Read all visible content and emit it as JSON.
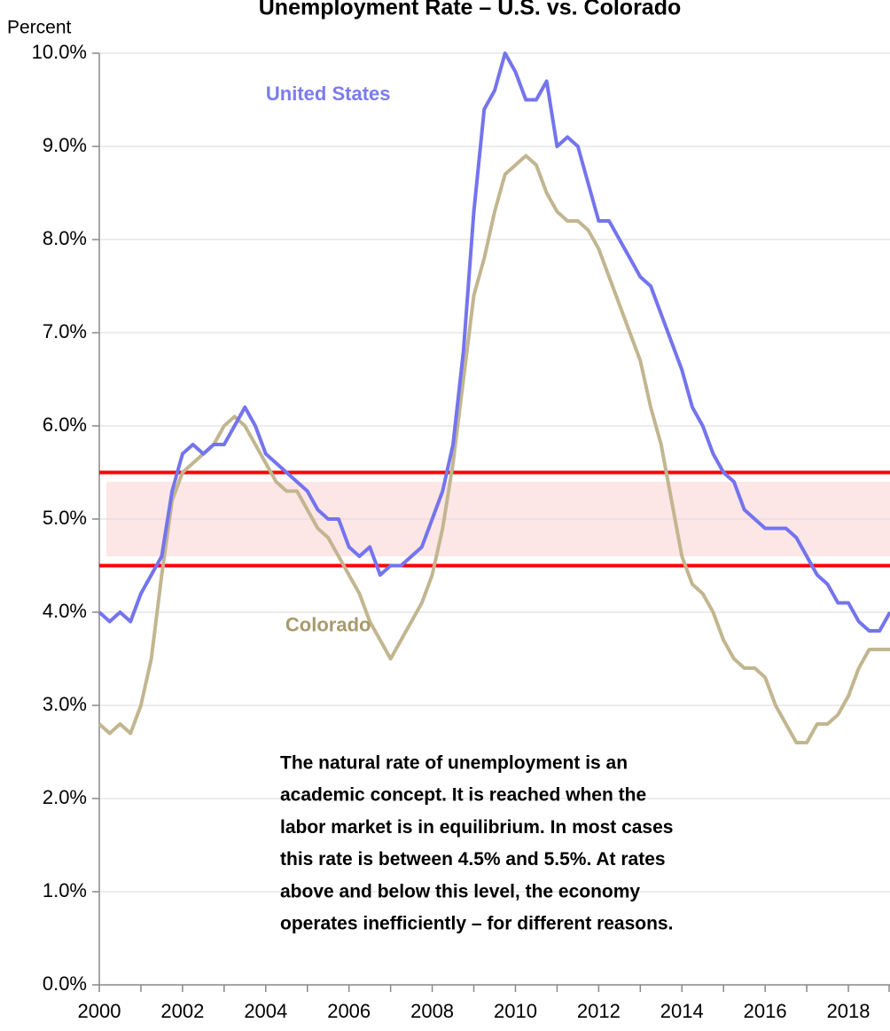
{
  "chart_data": {
    "type": "line",
    "title": "Unemployment Rate – U.S. vs. Colorado",
    "ylabel": "Percent",
    "x": [
      2000,
      2000.25,
      2000.5,
      2000.75,
      2001,
      2001.25,
      2001.5,
      2001.75,
      2002,
      2002.25,
      2002.5,
      2002.75,
      2003,
      2003.25,
      2003.5,
      2003.75,
      2004,
      2004.25,
      2004.5,
      2004.75,
      2005,
      2005.25,
      2005.5,
      2005.75,
      2006,
      2006.25,
      2006.5,
      2006.75,
      2007,
      2007.25,
      2007.5,
      2007.75,
      2008,
      2008.25,
      2008.5,
      2008.75,
      2009,
      2009.25,
      2009.5,
      2009.75,
      2010,
      2010.25,
      2010.5,
      2010.75,
      2011,
      2011.25,
      2011.5,
      2011.75,
      2012,
      2012.25,
      2012.5,
      2012.75,
      2013,
      2013.25,
      2013.5,
      2013.75,
      2014,
      2014.25,
      2014.5,
      2014.75,
      2015,
      2015.25,
      2015.5,
      2015.75,
      2016,
      2016.25,
      2016.5,
      2016.75,
      2017,
      2017.25,
      2017.5,
      2017.75,
      2018,
      2018.25,
      2018.5,
      2018.75,
      2019
    ],
    "series": [
      {
        "name": "United States",
        "color": "#7474ee",
        "values": [
          4.0,
          3.9,
          4.0,
          3.9,
          4.2,
          4.4,
          4.6,
          5.3,
          5.7,
          5.8,
          5.7,
          5.8,
          5.8,
          6.0,
          6.2,
          6.0,
          5.7,
          5.6,
          5.5,
          5.4,
          5.3,
          5.1,
          5.0,
          5.0,
          4.7,
          4.6,
          4.7,
          4.4,
          4.5,
          4.5,
          4.6,
          4.7,
          5.0,
          5.3,
          5.8,
          6.8,
          8.3,
          9.4,
          9.6,
          10.0,
          9.8,
          9.5,
          9.5,
          9.7,
          9.0,
          9.1,
          9.0,
          8.6,
          8.2,
          8.2,
          8.0,
          7.8,
          7.6,
          7.5,
          7.2,
          6.9,
          6.6,
          6.2,
          6.0,
          5.7,
          5.5,
          5.4,
          5.1,
          5.0,
          4.9,
          4.9,
          4.9,
          4.8,
          4.6,
          4.4,
          4.3,
          4.1,
          4.1,
          3.9,
          3.8,
          3.8,
          4.0
        ]
      },
      {
        "name": "Colorado",
        "color": "#c2b690",
        "values": [
          2.8,
          2.7,
          2.8,
          2.7,
          3.0,
          3.5,
          4.4,
          5.2,
          5.5,
          5.6,
          5.7,
          5.8,
          6.0,
          6.1,
          6.0,
          5.8,
          5.6,
          5.4,
          5.3,
          5.3,
          5.1,
          4.9,
          4.8,
          4.6,
          4.4,
          4.2,
          3.9,
          3.7,
          3.5,
          3.7,
          3.9,
          4.1,
          4.4,
          4.9,
          5.6,
          6.5,
          7.4,
          7.8,
          8.3,
          8.7,
          8.8,
          8.9,
          8.8,
          8.5,
          8.3,
          8.2,
          8.2,
          8.1,
          7.9,
          7.6,
          7.3,
          7.0,
          6.7,
          6.2,
          5.8,
          5.2,
          4.6,
          4.3,
          4.2,
          4.0,
          3.7,
          3.5,
          3.4,
          3.4,
          3.3,
          3.0,
          2.8,
          2.6,
          2.6,
          2.8,
          2.8,
          2.9,
          3.1,
          3.4,
          3.6,
          3.6,
          3.6
        ]
      }
    ],
    "series_labels": [
      {
        "text": "United States",
        "x": 2005.5,
        "y": 9.55,
        "color": "#7b7bef"
      },
      {
        "text": "Colorado",
        "x": 2005.5,
        "y": 3.85,
        "color": "#a89a6c"
      }
    ],
    "reference_lines": [
      {
        "value": 5.5,
        "color": "#ff0000"
      },
      {
        "value": 4.5,
        "color": "#ff0000"
      }
    ],
    "band": {
      "from": 4.6,
      "to": 5.4,
      "x_from": 2000.17,
      "color": "#fde6e6"
    },
    "annotation": [
      "The natural rate of unemployment is an",
      "academic concept. It is reached when the",
      "labor market is in equilibrium. In most cases",
      "this rate is between 4.5% and 5.5%. At rates",
      "above and below this level, the economy",
      "operates inefficiently – for different reasons."
    ],
    "xlim": [
      2000,
      2019
    ],
    "xticks": [
      2000,
      2002,
      2004,
      2006,
      2008,
      2010,
      2012,
      2014,
      2016,
      2018
    ],
    "xminorticks": [
      2001,
      2003,
      2005,
      2007,
      2009,
      2011,
      2013,
      2015,
      2017,
      2019
    ],
    "ylim": [
      0,
      10
    ],
    "yticks": [
      {
        "value": 0,
        "label": "0.0%"
      },
      {
        "value": 1,
        "label": "1.0%"
      },
      {
        "value": 2,
        "label": "2.0%"
      },
      {
        "value": 3,
        "label": "3.0%"
      },
      {
        "value": 4,
        "label": "4.0%"
      },
      {
        "value": 5,
        "label": "5.0%"
      },
      {
        "value": 6,
        "label": "6.0%"
      },
      {
        "value": 7,
        "label": "7.0%"
      },
      {
        "value": 8,
        "label": "8.0%"
      },
      {
        "value": 9,
        "label": "9.0%"
      },
      {
        "value": 10,
        "label": "10.0%"
      }
    ],
    "grid": true
  }
}
